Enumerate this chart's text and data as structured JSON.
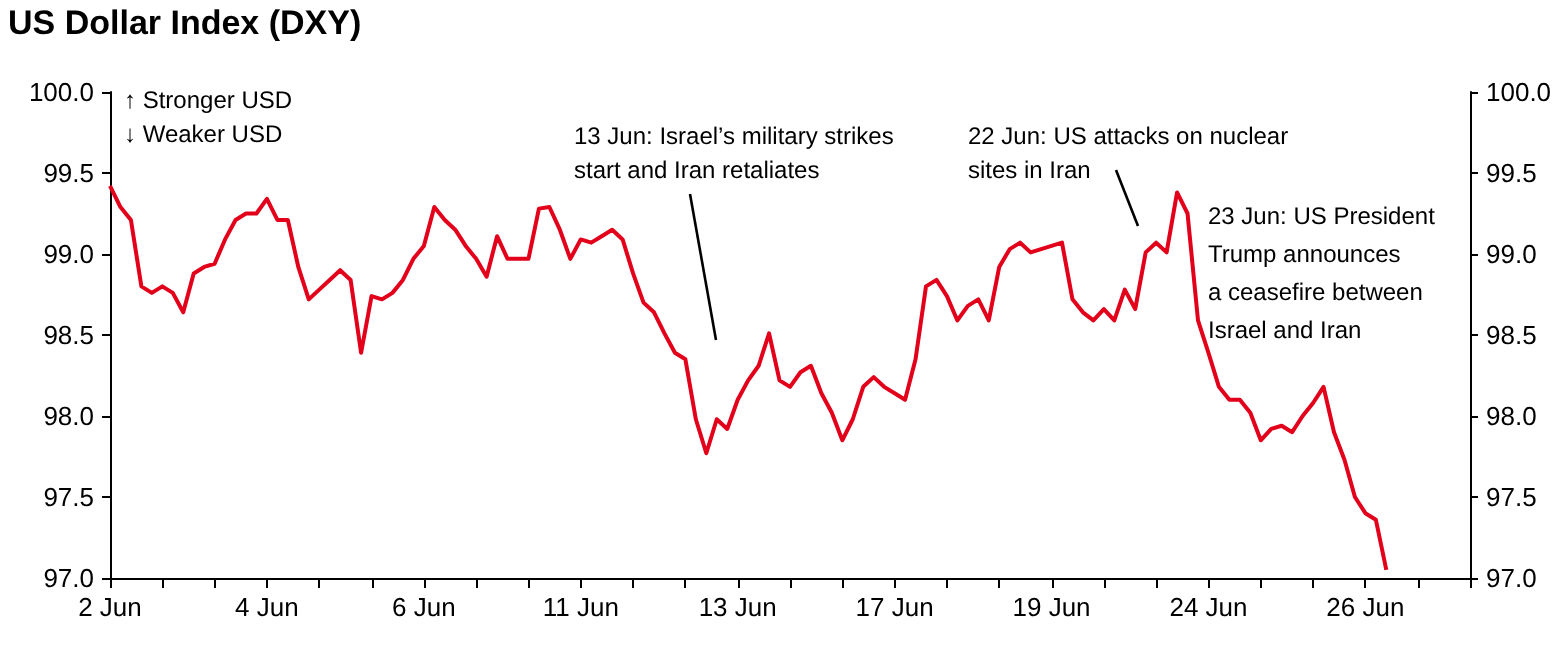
{
  "chart_data": {
    "type": "line",
    "title": "US Dollar Index (DXY)",
    "categories": [
      "2 Jun",
      null,
      null,
      null,
      null,
      null,
      null,
      null,
      null,
      null,
      null,
      null,
      null,
      null,
      null,
      "4 Jun",
      null,
      null,
      null,
      null,
      null,
      null,
      null,
      null,
      null,
      null,
      null,
      null,
      null,
      null,
      "6 Jun",
      null,
      null,
      null,
      null,
      null,
      null,
      null,
      null,
      null,
      null,
      null,
      null,
      null,
      null,
      "11 Jun",
      null,
      null,
      null,
      null,
      null,
      null,
      null,
      null,
      null,
      null,
      null,
      null,
      null,
      null,
      "13 Jun",
      null,
      null,
      null,
      null,
      null,
      null,
      null,
      null,
      null,
      null,
      null,
      null,
      null,
      null,
      "17 Jun",
      null,
      null,
      null,
      null,
      null,
      null,
      null,
      null,
      null,
      null,
      null,
      null,
      null,
      null,
      "19 Jun",
      null,
      null,
      null,
      null,
      null,
      null,
      null,
      null,
      null,
      null,
      null,
      null,
      null,
      null,
      "24 Jun",
      null,
      null,
      null,
      null,
      null,
      null,
      null,
      null,
      null,
      null,
      null,
      null,
      null,
      null,
      "26 Jun",
      null,
      null,
      null,
      null,
      null,
      null,
      null,
      null,
      null,
      null
    ],
    "series": [
      {
        "color": "#e2001a",
        "values": [
          99.42,
          99.29,
          99.21,
          98.8,
          98.76,
          98.8,
          98.76,
          98.64,
          98.88,
          98.92,
          98.94,
          99.09,
          99.21,
          99.25,
          99.25,
          99.34,
          99.21,
          99.21,
          98.92,
          98.72,
          98.78,
          98.84,
          98.9,
          98.84,
          98.39,
          98.74,
          98.72,
          98.76,
          98.84,
          98.97,
          99.05,
          99.29,
          99.21,
          99.15,
          99.05,
          98.97,
          98.86,
          99.11,
          98.97,
          98.97,
          98.97,
          99.28,
          99.29,
          99.15,
          98.97,
          99.09,
          99.07,
          99.11,
          99.15,
          99.09,
          98.88,
          98.7,
          98.64,
          98.51,
          98.39,
          98.35,
          97.98,
          97.77,
          97.98,
          97.92,
          98.1,
          98.22,
          98.31,
          98.51,
          98.22,
          98.18,
          98.27,
          98.31,
          98.14,
          98.02,
          97.85,
          97.98,
          98.18,
          98.24,
          98.18,
          98.14,
          98.1,
          98.35,
          98.8,
          98.84,
          98.74,
          98.59,
          98.68,
          98.72,
          98.59,
          98.92,
          99.03,
          99.07,
          99.01,
          99.03,
          99.05,
          99.07,
          98.72,
          98.64,
          98.59,
          98.66,
          98.59,
          98.78,
          98.66,
          99.01,
          99.07,
          99.01,
          99.38,
          99.25,
          98.59,
          98.39,
          98.18,
          98.1,
          98.1,
          98.02,
          97.85,
          97.92,
          97.94,
          97.9,
          98.0,
          98.08,
          98.18,
          97.9,
          97.73,
          97.5,
          97.4,
          97.36,
          97.05,
          null,
          null,
          null,
          null,
          null,
          null,
          null,
          null
        ]
      }
    ],
    "ylim": [
      97,
      100
    ],
    "yticks": [
      {
        "value": 97,
        "label": "97.0"
      },
      {
        "value": 97.5,
        "label": "97.5"
      },
      {
        "value": 98,
        "label": "98.0"
      },
      {
        "value": 98.5,
        "label": "98.5"
      },
      {
        "value": 99,
        "label": "99.0"
      },
      {
        "value": 99.5,
        "label": "99.5"
      },
      {
        "value": 100,
        "label": "100.0"
      }
    ],
    "y2lim": [
      97,
      100
    ],
    "y2ticks": [
      {
        "value": 97,
        "label": "97.0"
      },
      {
        "value": 97.5,
        "label": "97.5"
      },
      {
        "value": 98,
        "label": "98.0"
      },
      {
        "value": 98.5,
        "label": "98.5"
      },
      {
        "value": 99,
        "label": "99.0"
      },
      {
        "value": 99.5,
        "label": "99.5"
      },
      {
        "value": 100,
        "label": "100.0"
      }
    ],
    "annotations": [
      "↑ Stronger USD",
      "↓ Weaker USD",
      "13 Jun: Israel’s military strikes\nstart and Iran retaliates",
      "22 Jun: US attacks on nuclear\nsites in Iran",
      "23 Jun: US President\nTrump announces\na ceasefire between\nIsrael and Iran"
    ],
    "grid": false,
    "marker": "none",
    "line_style": "solid"
  }
}
